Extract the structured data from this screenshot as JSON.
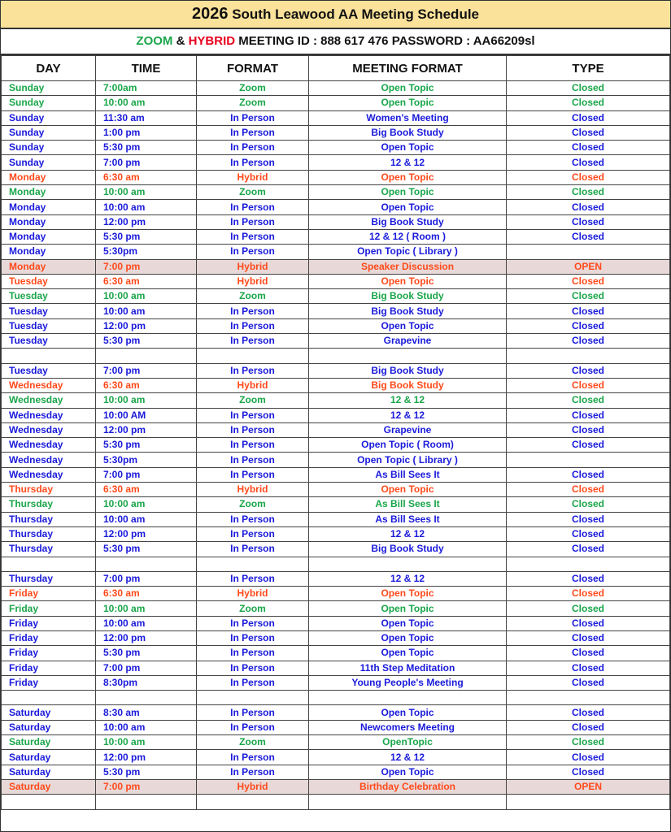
{
  "title": {
    "year": "2026",
    "text": " South Leawood AA Meeting Schedule"
  },
  "subheader": {
    "zoom": "ZOOM",
    "amp": " & ",
    "hybrid": "HYBRID",
    "rest": " MEETING ID : 888 617 476 PASSWORD : AA66209sl"
  },
  "colors": {
    "zoom": "#1aa64a",
    "inperson": "#1a1adb",
    "hybrid": "#ff4a1a",
    "title_hybrid": "#e8001c",
    "highlight": "#e8d8d8",
    "title_bg": "#fbe29a"
  },
  "columns": [
    "DAY",
    "TIME",
    "FORMAT",
    "MEETING FORMAT",
    "TYPE"
  ],
  "rows": [
    [
      "Sunday",
      "7:00am",
      "Zoom",
      "Open Topic",
      "Closed",
      "g"
    ],
    [
      "Sunday",
      "10:00 am",
      "Zoom",
      "Open Topic",
      "Closed",
      "g"
    ],
    [
      "Sunday",
      "11:30 am",
      "In Person",
      "Women's Meeting",
      "Closed",
      "b"
    ],
    [
      "Sunday",
      "1:00 pm",
      "In Person",
      "Big Book Study",
      "Closed",
      "b"
    ],
    [
      "Sunday",
      "5:30 pm",
      "In Person",
      "Open Topic",
      "Closed",
      "b"
    ],
    [
      "Sunday",
      "7:00 pm",
      "In Person",
      "12 & 12",
      "Closed",
      "b"
    ],
    [
      "Monday",
      "6:30 am",
      "Hybrid",
      "Open Topic",
      "Closed",
      "r"
    ],
    [
      "Monday",
      "10:00 am",
      "Zoom",
      "Open Topic",
      "Closed",
      "g"
    ],
    [
      "Monday",
      "10:00 am",
      "In Person",
      "Open Topic",
      "Closed",
      "b"
    ],
    [
      "Monday",
      "12:00 pm",
      "In Person",
      "Big Book Study",
      "Closed",
      "b"
    ],
    [
      "Monday",
      "5:30 pm",
      "In Person",
      "12 & 12 ( Room )",
      "Closed",
      "b"
    ],
    [
      "Monday",
      "5:30pm",
      "In Person",
      "Open Topic ( Library )",
      "",
      "b"
    ],
    [
      "Monday",
      "7:00 pm",
      "Hybrid",
      "Speaker Discussion",
      "OPEN",
      "rh"
    ],
    [
      "Tuesday",
      "6:30 am",
      "Hybrid",
      "Open Topic",
      "Closed",
      "r"
    ],
    [
      "Tuesday",
      "10:00 am",
      "Zoom",
      "Big Book Study",
      "Closed",
      "g"
    ],
    [
      "Tuesday",
      "10:00 am",
      "In Person",
      "Big Book Study",
      "Closed",
      "b"
    ],
    [
      "Tuesday",
      "12:00 pm",
      "In Person",
      "Open Topic",
      "Closed",
      "b"
    ],
    [
      "Tuesday",
      "5:30 pm",
      "In Person",
      "Grapevine",
      "Closed",
      "b"
    ],
    [
      "",
      "",
      "",
      "",
      "",
      "b"
    ],
    [
      "Tuesday",
      "7:00 pm",
      "In Person",
      "Big Book Study",
      "Closed",
      "b"
    ],
    [
      "Wednesday",
      "6:30 am",
      "Hybrid",
      "Big Book Study",
      "Closed",
      "r"
    ],
    [
      "Wednesday",
      "10:00 am",
      "Zoom",
      "12 & 12",
      "Closed",
      "g"
    ],
    [
      "Wednesday",
      "10:00 AM",
      "In Person",
      "12 & 12",
      "Closed",
      "b"
    ],
    [
      "Wednesday",
      "12:00 pm",
      "In Person",
      "Grapevine",
      "Closed",
      "b"
    ],
    [
      "Wednesday",
      "5:30 pm",
      "In Person",
      "Open Topic ( Room)",
      "Closed",
      "b"
    ],
    [
      "Wednesday",
      "5:30pm",
      "In Person",
      "Open Topic ( Library )",
      "",
      "b"
    ],
    [
      "Wednesday",
      "7:00 pm",
      "In Person",
      "As Bill Sees It",
      "Closed",
      "b"
    ],
    [
      "Thursday",
      "6:30 am",
      "Hybrid",
      "Open Topic",
      "Closed",
      "r"
    ],
    [
      "Thursday",
      "10:00 am",
      "Zoom",
      "As Bill Sees It",
      "Closed",
      "g"
    ],
    [
      "Thursday",
      "10:00 am",
      "In Person",
      "As Bill Sees It",
      "Closed",
      "b"
    ],
    [
      "Thursday",
      "12:00 pm",
      "In Person",
      "12 & 12",
      "Closed",
      "b"
    ],
    [
      "Thursday",
      "5:30 pm",
      "In Person",
      "Big Book Study",
      "Closed",
      "b"
    ],
    [
      "",
      "",
      "",
      "",
      "",
      "b"
    ],
    [
      "Thursday",
      "7:00 pm",
      "In Person",
      "12 & 12",
      "Closed",
      "b"
    ],
    [
      "Friday",
      "6:30 am",
      "Hybrid",
      "Open Topic",
      "Closed",
      "r"
    ],
    [
      "Friday",
      "10:00 am",
      "Zoom",
      "Open Topic",
      "Closed",
      "g"
    ],
    [
      "Friday",
      "10:00 am",
      "In Person",
      "Open Topic",
      "Closed",
      "b"
    ],
    [
      "Friday",
      "12:00 pm",
      "In Person",
      "Open Topic",
      "Closed",
      "b"
    ],
    [
      "Friday",
      "5:30 pm",
      "In Person",
      "Open Topic",
      "Closed",
      "b"
    ],
    [
      "Friday",
      "7:00 pm",
      "In Person",
      "11th Step Meditation",
      "Closed",
      "b"
    ],
    [
      "Friday",
      "8:30pm",
      "In Person",
      "Young People's Meeting",
      "Closed",
      "b"
    ],
    [
      "",
      "",
      "",
      "",
      "",
      "b"
    ],
    [
      "Saturday",
      "8:30 am",
      "In Person",
      "Open Topic",
      "Closed",
      "b"
    ],
    [
      "Saturday",
      "10:00 am",
      "In Person",
      "Newcomers Meeting",
      "Closed",
      "b"
    ],
    [
      "Saturday",
      "10:00 am",
      "Zoom",
      "OpenTopic",
      "Closed",
      "g"
    ],
    [
      "Saturday",
      "12:00 pm",
      "In Person",
      "12 & 12",
      "Closed",
      "b"
    ],
    [
      "Saturday",
      "5:30 pm",
      "In Person",
      "Open Topic",
      "Closed",
      "b"
    ],
    [
      "Saturday",
      "7:00 pm",
      "Hybrid",
      "Birthday Celebration",
      "OPEN",
      "rh"
    ],
    [
      "",
      "",
      "",
      "",
      "",
      "b"
    ]
  ]
}
